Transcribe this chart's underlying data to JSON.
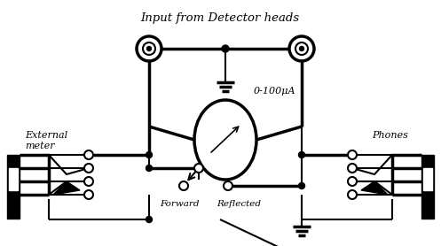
{
  "title": "Input from Detector heads",
  "label_external": "External\nmeter",
  "label_phones": "Phones",
  "label_forward": "Forward",
  "label_reflected": "Reflected",
  "label_meter": "0-100μA",
  "bg_color": "#ffffff",
  "line_color": "#000000",
  "lw": 1.5,
  "lw_thick": 2.5,
  "fig_width": 4.97,
  "fig_height": 2.78,
  "dpi": 100
}
